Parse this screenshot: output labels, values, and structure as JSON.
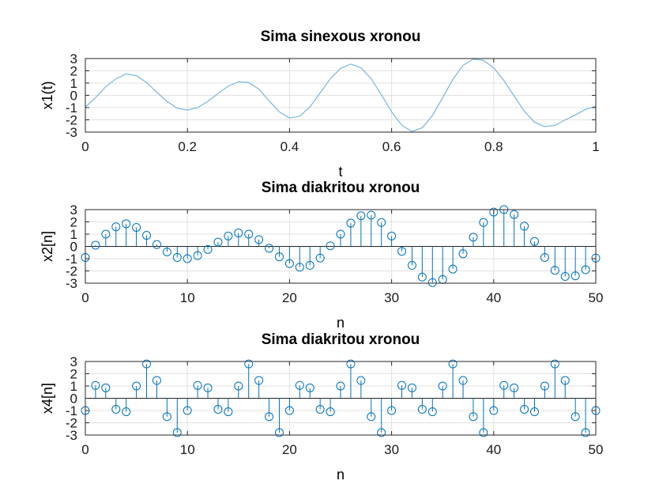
{
  "chart_data": [
    {
      "type": "line",
      "title": "Sima sinexous xronou",
      "xlabel": "t",
      "ylabel": "x1(t)",
      "xlim": [
        0,
        1
      ],
      "ylim": [
        -3,
        3
      ],
      "xticks": [
        0,
        0.2,
        0.4,
        0.6,
        0.8,
        1
      ],
      "xtick_labels": [
        "0",
        "0.2",
        "0.4",
        "0.6",
        "0.8",
        "1"
      ],
      "yticks": [
        3,
        2,
        1,
        0,
        -1,
        -2,
        -3
      ],
      "ytick_labels": [
        "3",
        "2",
        "1",
        "0",
        "-1",
        "-2",
        "-3"
      ],
      "grid": true,
      "color": "#77b5e0",
      "series": [
        {
          "x": [
            0,
            0.02,
            0.04,
            0.06,
            0.08,
            0.1,
            0.12,
            0.14,
            0.16,
            0.18,
            0.2,
            0.22,
            0.24,
            0.26,
            0.28,
            0.3,
            0.32,
            0.34,
            0.36,
            0.38,
            0.4,
            0.42,
            0.44,
            0.46,
            0.48,
            0.5,
            0.52,
            0.54,
            0.56,
            0.58,
            0.6,
            0.62,
            0.64,
            0.66,
            0.68,
            0.7,
            0.72,
            0.74,
            0.76,
            0.78,
            0.8,
            0.82,
            0.84,
            0.86,
            0.88,
            0.9,
            0.92,
            0.94,
            0.96,
            0.98,
            1
          ],
          "y": [
            -0.95,
            -0.2,
            0.7,
            1.35,
            1.75,
            1.6,
            1.05,
            0.25,
            -0.5,
            -1.05,
            -1.2,
            -1.0,
            -0.5,
            0.15,
            0.75,
            1.1,
            1.05,
            0.5,
            -0.45,
            -1.35,
            -1.85,
            -1.7,
            -0.95,
            0.2,
            1.35,
            2.2,
            2.55,
            2.25,
            1.35,
            0.05,
            -1.35,
            -2.45,
            -2.95,
            -2.65,
            -1.65,
            -0.2,
            1.3,
            2.45,
            2.95,
            2.85,
            2.25,
            1.2,
            -0.05,
            -1.3,
            -2.2,
            -2.55,
            -2.45,
            -2.0,
            -1.6,
            -1.15,
            -0.9
          ]
        }
      ]
    },
    {
      "type": "stem",
      "title": "Sima diakritou xronou",
      "xlabel": "n",
      "ylabel": "x2[n]",
      "xlim": [
        0,
        50
      ],
      "ylim": [
        -3,
        3
      ],
      "xticks": [
        0,
        10,
        20,
        30,
        40,
        50
      ],
      "xtick_labels": [
        "0",
        "10",
        "20",
        "30",
        "40",
        "50"
      ],
      "yticks": [
        3,
        2,
        1,
        0,
        -1,
        -2,
        -3
      ],
      "ytick_labels": [
        "3",
        "2",
        "1",
        "0",
        "-1",
        "-2",
        "-3"
      ],
      "grid": true,
      "color": "#0072bd",
      "series": [
        {
          "x": [
            0,
            1,
            2,
            3,
            4,
            5,
            6,
            7,
            8,
            9,
            10,
            11,
            12,
            13,
            14,
            15,
            16,
            17,
            18,
            19,
            20,
            21,
            22,
            23,
            24,
            25,
            26,
            27,
            28,
            29,
            30,
            31,
            32,
            33,
            34,
            35,
            36,
            37,
            38,
            39,
            40,
            41,
            42,
            43,
            44,
            45,
            46,
            47,
            48,
            49,
            50
          ],
          "y": [
            -0.9,
            0.1,
            1.0,
            1.6,
            1.85,
            1.55,
            0.9,
            0.15,
            -0.45,
            -0.9,
            -1.0,
            -0.75,
            -0.25,
            0.35,
            0.85,
            1.1,
            1.0,
            0.55,
            -0.15,
            -0.85,
            -1.4,
            -1.7,
            -1.55,
            -0.95,
            0.05,
            1.0,
            1.9,
            2.5,
            2.55,
            1.95,
            0.85,
            -0.4,
            -1.55,
            -2.5,
            -2.95,
            -2.7,
            -1.85,
            -0.6,
            0.75,
            1.95,
            2.8,
            3.0,
            2.6,
            1.65,
            0.4,
            -0.9,
            -1.95,
            -2.45,
            -2.4,
            -1.9,
            -0.95
          ]
        }
      ]
    },
    {
      "type": "stem",
      "title": "Sima diakritou xronou",
      "xlabel": "n",
      "ylabel": "x4[n]",
      "xlim": [
        0,
        50
      ],
      "ylim": [
        -3,
        3
      ],
      "xticks": [
        0,
        10,
        20,
        30,
        40,
        50
      ],
      "xtick_labels": [
        "0",
        "10",
        "20",
        "30",
        "40",
        "50"
      ],
      "yticks": [
        3,
        2,
        1,
        0,
        -1,
        -2,
        -3
      ],
      "ytick_labels": [
        "3",
        "2",
        "1",
        "0",
        "-1",
        "-2",
        "-3"
      ],
      "grid": true,
      "color": "#0072bd",
      "series": [
        {
          "x": [
            0,
            1,
            2,
            3,
            4,
            5,
            6,
            7,
            8,
            9,
            10,
            11,
            12,
            13,
            14,
            15,
            16,
            17,
            18,
            19,
            20,
            21,
            22,
            23,
            24,
            25,
            26,
            27,
            28,
            29,
            30,
            31,
            32,
            33,
            34,
            35,
            36,
            37,
            38,
            39,
            40,
            41,
            42,
            43,
            44,
            45,
            46,
            47,
            48,
            49,
            50
          ],
          "y": [
            -1.0,
            1.05,
            0.85,
            -0.9,
            -1.1,
            1.0,
            2.8,
            1.45,
            -1.5,
            -2.8,
            -1.0,
            1.05,
            0.85,
            -0.9,
            -1.1,
            1.0,
            2.8,
            1.45,
            -1.5,
            -2.8,
            -1.0,
            1.05,
            0.85,
            -0.9,
            -1.1,
            1.0,
            2.8,
            1.45,
            -1.5,
            -2.8,
            -1.0,
            1.05,
            0.85,
            -0.9,
            -1.1,
            1.0,
            2.8,
            1.45,
            -1.5,
            -2.8,
            -1.0,
            1.05,
            0.85,
            -0.9,
            -1.1,
            1.0,
            2.8,
            1.45,
            -1.5,
            -2.8,
            -1.0
          ]
        }
      ]
    }
  ]
}
